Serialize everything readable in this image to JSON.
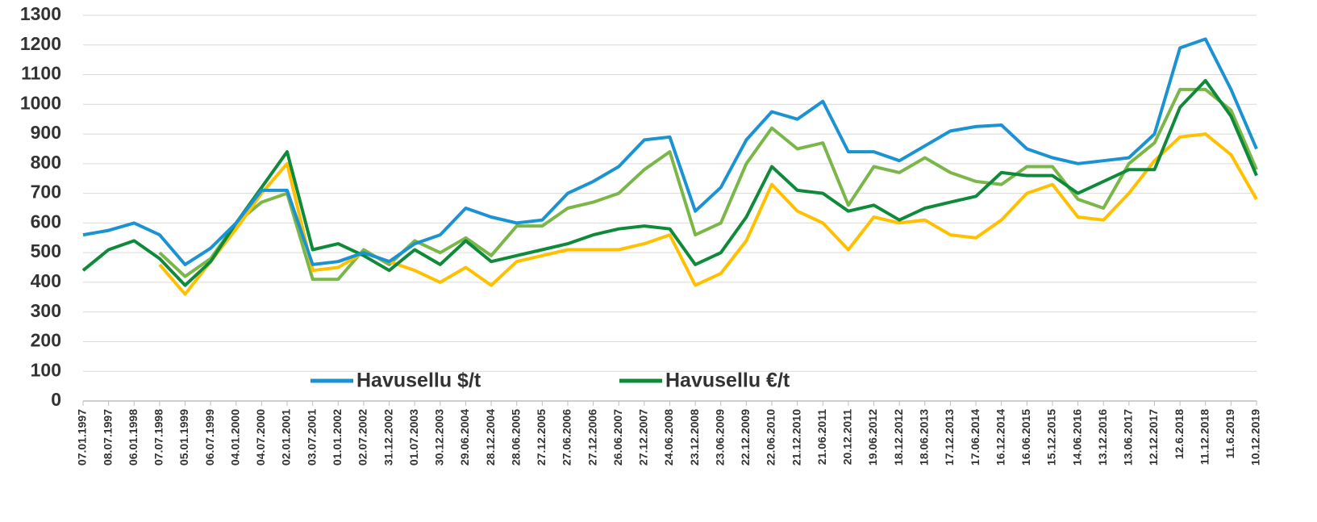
{
  "chart_data": {
    "type": "line",
    "categories": [
      "07.01.1997",
      "08.07.1997",
      "06.01.1998",
      "07.07.1998",
      "05.01.1999",
      "06.07.1999",
      "04.01.2000",
      "04.07.2000",
      "02.01.2001",
      "03.07.2001",
      "01.01.2002",
      "02.07.2002",
      "31.12.2002",
      "01.07.2003",
      "30.12.2003",
      "29.06.2004",
      "28.12.2004",
      "28.06.2005",
      "27.12.2005",
      "27.06.2006",
      "27.12.2006",
      "26.06.2007",
      "27.12.2007",
      "24.06.2008",
      "23.12.2008",
      "23.06.2009",
      "22.12.2009",
      "22.06.2010",
      "21.12.2010",
      "21.06.2011",
      "20.12.2011",
      "19.06.2012",
      "18.12.2012",
      "18.06.2013",
      "17.12.2013",
      "17.06.2014",
      "16.12.2014",
      "16.06.2015",
      "15.12.2015",
      "14.06.2016",
      "13.12.2016",
      "13.06.2017",
      "12.12.2017",
      "12.6.2018",
      "11.12.2018",
      "11.6.2019",
      "10.12.2019"
    ],
    "series": [
      {
        "name": "Havusellu $/t",
        "color": "#1b93d2",
        "values": [
          560,
          575,
          600,
          560,
          460,
          515,
          600,
          710,
          710,
          460,
          470,
          500,
          470,
          530,
          560,
          650,
          620,
          600,
          610,
          700,
          740,
          790,
          880,
          890,
          640,
          720,
          880,
          975,
          950,
          1010,
          840,
          840,
          810,
          860,
          910,
          925,
          930,
          850,
          820,
          800,
          810,
          820,
          900,
          1190,
          1220,
          1050,
          850
        ]
      },
      {
        "name": "Havusellu €/t",
        "color": "#0f8a3a",
        "values": [
          440,
          510,
          540,
          480,
          390,
          470,
          600,
          720,
          840,
          510,
          530,
          490,
          440,
          510,
          460,
          540,
          470,
          490,
          510,
          530,
          560,
          580,
          590,
          580,
          460,
          500,
          620,
          790,
          710,
          700,
          640,
          660,
          610,
          650,
          670,
          690,
          770,
          760,
          760,
          700,
          740,
          780,
          780,
          990,
          1080,
          960,
          760
        ]
      },
      {
        "color": "#ffc000",
        "values": [
          null,
          null,
          null,
          460,
          360,
          470,
          580,
          700,
          800,
          440,
          450,
          500,
          470,
          440,
          400,
          450,
          390,
          470,
          490,
          510,
          510,
          510,
          530,
          560,
          390,
          430,
          540,
          730,
          640,
          600,
          510,
          620,
          600,
          610,
          560,
          550,
          610,
          700,
          730,
          620,
          610,
          700,
          810,
          890,
          900,
          830,
          680
        ]
      },
      {
        "color": "#7ab648",
        "values": [
          null,
          null,
          null,
          500,
          420,
          480,
          600,
          670,
          700,
          410,
          410,
          510,
          460,
          540,
          500,
          550,
          490,
          590,
          590,
          650,
          670,
          700,
          780,
          840,
          560,
          600,
          800,
          920,
          850,
          870,
          660,
          790,
          770,
          820,
          770,
          740,
          730,
          790,
          790,
          680,
          650,
          800,
          870,
          1050,
          1050,
          980,
          780
        ]
      }
    ],
    "ylim": [
      0,
      1300
    ],
    "yticks": [
      0,
      100,
      200,
      300,
      400,
      500,
      600,
      700,
      800,
      900,
      1000,
      1100,
      1200,
      1300
    ],
    "grid": true
  }
}
